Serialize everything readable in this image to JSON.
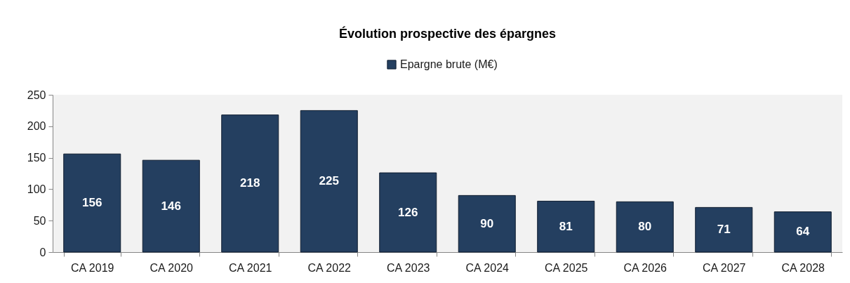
{
  "chart_data": {
    "type": "bar",
    "title": "Évolution prospective des épargnes",
    "categories": [
      "CA 2019",
      "CA 2020",
      "CA 2021",
      "CA 2022",
      "CA 2023",
      "CA 2024",
      "CA 2025",
      "CA 2026",
      "CA 2027",
      "CA 2028"
    ],
    "series": [
      {
        "name": "Epargne brute (M€)",
        "color": "#243f60",
        "values": [
          156,
          146,
          218,
          225,
          126,
          90,
          81,
          80,
          71,
          64
        ]
      }
    ],
    "ylim": [
      0,
      250
    ],
    "yticks": [
      0,
      50,
      100,
      150,
      200,
      250
    ],
    "data_labels": true,
    "grid": false,
    "legend": "top"
  }
}
